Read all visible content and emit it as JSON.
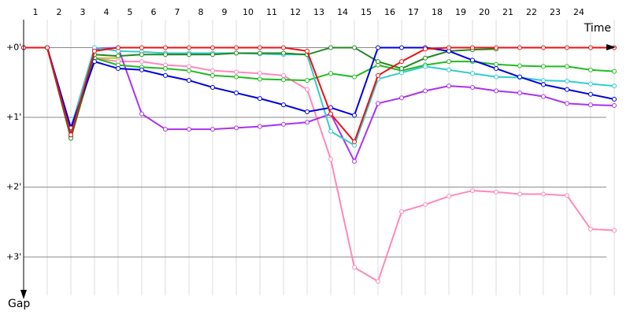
{
  "chart_data": {
    "type": "line",
    "x_label": "Time",
    "y_label": "Gap",
    "categories": [
      null,
      "1",
      "2",
      "3",
      "4",
      "5",
      "6",
      "7",
      "8",
      "9",
      "10",
      "11",
      "12",
      "13",
      "14",
      "15",
      "16",
      "17",
      "18",
      "19",
      "20",
      "21",
      "22",
      "23",
      "24",
      null
    ],
    "ylim": [
      -0.4,
      3.55
    ],
    "y_inverted": true,
    "grid": true,
    "yticks": [
      {
        "value": 0,
        "label": "+0'"
      },
      {
        "value": 1,
        "label": "+1'"
      },
      {
        "value": 2,
        "label": "+2'"
      },
      {
        "value": 3,
        "label": "+3'"
      }
    ],
    "series": [
      {
        "color": "#bbcc22",
        "values": [
          0,
          0,
          1.27,
          0.15,
          0.15,
          null,
          null,
          null,
          null,
          null,
          null,
          null,
          null,
          null,
          null,
          null,
          null,
          null,
          null,
          null,
          null,
          null,
          null,
          null,
          null,
          null
        ]
      },
      {
        "color": "#ff88bb",
        "values": [
          0,
          0,
          1.2,
          0.15,
          0.2,
          0.2,
          0.25,
          0.27,
          0.33,
          0.35,
          0.37,
          0.4,
          0.6,
          1.6,
          3.15,
          3.35,
          2.35,
          2.25,
          2.13,
          2.05,
          2.07,
          2.1,
          2.1,
          2.12,
          2.6,
          2.62
        ]
      },
      {
        "color": "#aa33ee",
        "values": [
          0,
          0,
          1.25,
          0.02,
          0,
          0.95,
          1.17,
          1.17,
          1.17,
          1.15,
          1.13,
          1.1,
          1.07,
          0.95,
          1.63,
          0.8,
          0.72,
          0.62,
          0.55,
          0.57,
          0.62,
          0.65,
          0.7,
          0.8,
          0.82,
          0.83
        ]
      },
      {
        "color": "#22bb22",
        "values": [
          0,
          0,
          1.28,
          0.15,
          0.25,
          0.28,
          0.3,
          0.33,
          0.4,
          0.42,
          0.45,
          0.46,
          0.47,
          0.37,
          0.42,
          0.25,
          0.33,
          0.25,
          0.2,
          0.2,
          0.24,
          0.26,
          0.27,
          0.27,
          0.32,
          0.34
        ]
      },
      {
        "color": "#33cccc",
        "values": [
          0,
          0,
          1.15,
          0,
          0.05,
          0.06,
          0.08,
          0.08,
          0.08,
          0.08,
          0.09,
          0.1,
          0.1,
          1.2,
          1.4,
          0.45,
          0.36,
          0.27,
          0.32,
          0.37,
          0.42,
          0.43,
          0.47,
          0.48,
          0.52,
          0.55
        ]
      },
      {
        "color": "#228822",
        "values": [
          0,
          0,
          1.3,
          0.1,
          0.12,
          0.1,
          0.1,
          0.1,
          0.1,
          0.08,
          0.08,
          0.08,
          0.1,
          0,
          0,
          0.2,
          0.3,
          0.15,
          0.05,
          0.03,
          0.02,
          null,
          null,
          null,
          null,
          null
        ]
      },
      {
        "color": "#0000dd",
        "values": [
          0,
          0,
          1.15,
          0.2,
          0.3,
          0.32,
          0.4,
          0.47,
          0.57,
          0.65,
          0.73,
          0.82,
          0.92,
          0.86,
          0.97,
          0,
          0,
          0,
          0.05,
          0.18,
          0.3,
          0.42,
          0.53,
          0.6,
          0.67,
          0.74
        ]
      },
      {
        "color": "#ee1111",
        "values": [
          0,
          0,
          1.25,
          0.05,
          0,
          0,
          0,
          0,
          0,
          0,
          0,
          0,
          0.05,
          0.95,
          1.35,
          0.4,
          0.2,
          0.02,
          0,
          0,
          0,
          0,
          0,
          0,
          0,
          0
        ]
      }
    ]
  }
}
